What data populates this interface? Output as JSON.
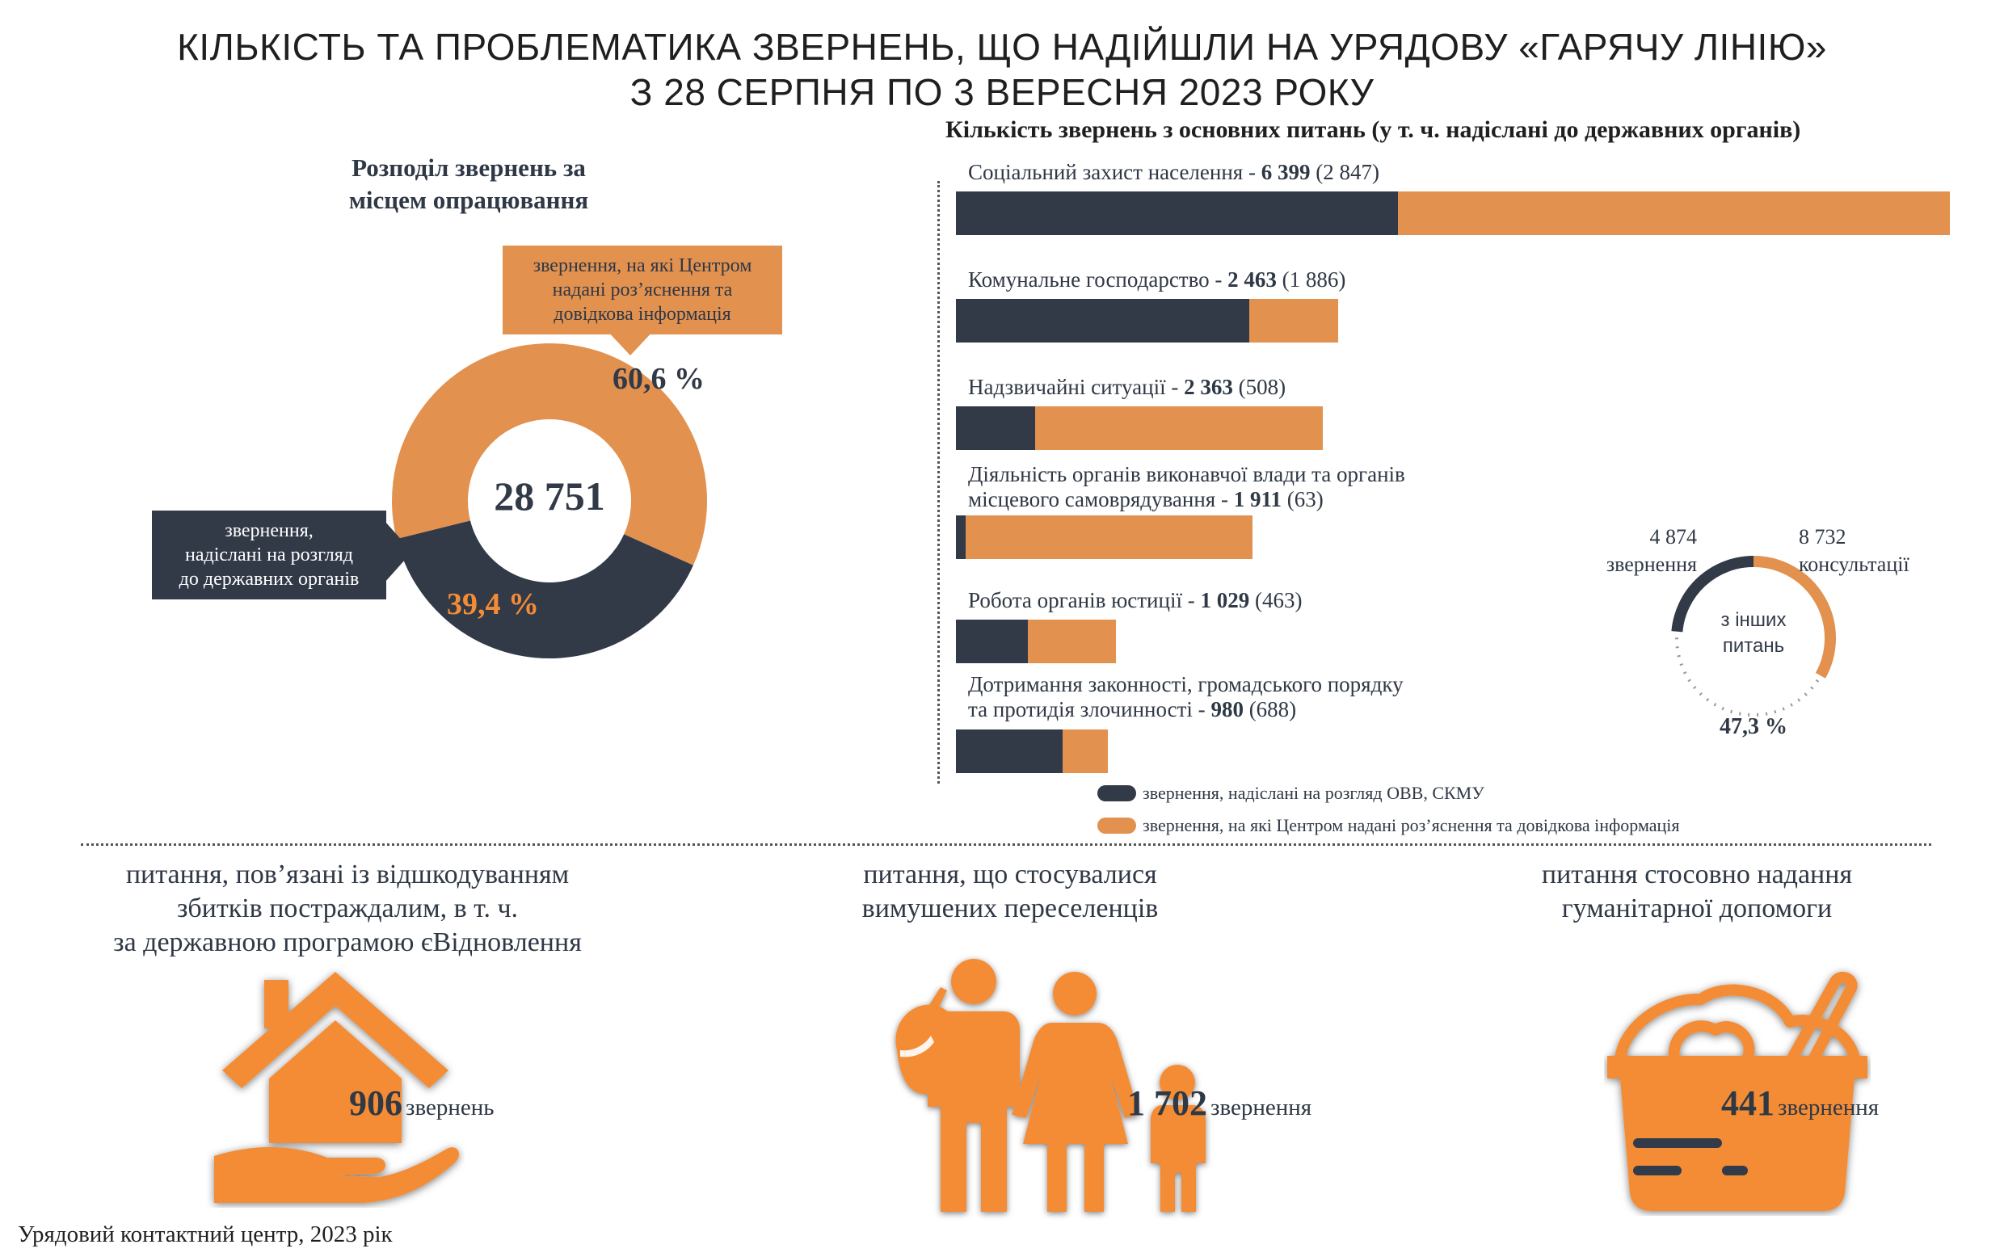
{
  "title": {
    "line1": "КІЛЬКІСТЬ ТА ПРОБЛЕМАТИКА ЗВЕРНЕНЬ, ЩО НАДІЙШЛИ НА УРЯДОВУ «ГАРЯЧУ ЛІНІЮ»",
    "line2": "З 28 СЕРПНЯ ПО 3 ВЕРЕСНЯ 2023 РОКУ"
  },
  "colors": {
    "dark": "#323a48",
    "orange": "#e2914f",
    "orange_bright": "#f48c36"
  },
  "chart_data": [
    {
      "type": "pie",
      "title": "Розподіл звернень за місцем опрацювання",
      "total_label": "28 751",
      "slices": [
        {
          "label": "звернення, на які Центром надані роз’яснення та довідкова інформація",
          "value": 60.6,
          "display": "60,6 %"
        },
        {
          "label": "звернення, надіслані на розгляд до державних органів",
          "value": 39.4,
          "display": "39,4 %"
        }
      ]
    },
    {
      "type": "bar",
      "title": "Кількість звернень з основних питань (у т. ч. надіслані до державних органів)",
      "categories": [
        {
          "line1": "Соціальний захист населення - ",
          "line2": "",
          "total": 6399,
          "total_text": "6 399",
          "sent": 2847,
          "sent_text": "(2 847)"
        },
        {
          "line1": "Комунальне господарство - ",
          "line2": "",
          "total": 2463,
          "total_text": "2 463",
          "sent": 1886,
          "sent_text": "(1 886)"
        },
        {
          "line1": "Надзвичайні ситуації - ",
          "line2": "",
          "total": 2363,
          "total_text": "2 363",
          "sent": 508,
          "sent_text": "(508)"
        },
        {
          "line1": "Діяльність органів виконавчої влади та органів",
          "line2": "місцевого самоврядування - ",
          "total": 1911,
          "total_text": "1 911",
          "sent": 63,
          "sent_text": "(63)"
        },
        {
          "line1": "Робота органів юстиції - ",
          "line2": "",
          "total": 1029,
          "total_text": "1 029",
          "sent": 463,
          "sent_text": "(463)"
        },
        {
          "line1": "Дотримання законності, громадського порядку",
          "line2": "та протидія злочинності - ",
          "total": 980,
          "total_text": "980",
          "sent": 688,
          "sent_text": "(688)"
        }
      ],
      "legend": [
        "звернення, надіслані на розгляд ОВВ, СКМУ",
        "звернення, на які Центром надані роз’яснення та довідкова інформація"
      ]
    },
    {
      "type": "pie",
      "center_label": [
        "з інших",
        "питань"
      ],
      "left_value": "4 874",
      "left_label": "звернення",
      "right_value": "8 732",
      "right_label": "консультації",
      "percent_label": "47,3 %",
      "percent": 47.3
    }
  ],
  "donut": {
    "title_line1": "Розподіл звернень за",
    "title_line2": "місцем опрацювання",
    "callout_orange": [
      "звернення, на які Центром",
      "надані роз’яснення та",
      "довідкова інформація"
    ],
    "callout_dark": [
      "звернення,",
      "надіслані на розгляд",
      "до державних органів"
    ]
  },
  "bars_title": "Кількість звернень з основних питань (у т. ч. надіслані до державних органів)",
  "topics": [
    {
      "title": [
        "питання, пов’язані із відшкодуванням",
        "збитків постраждалим, в т. ч.",
        "за державною програмою єВідновлення"
      ],
      "count": "906",
      "unit": "звернень",
      "icon": "house-hand-icon"
    },
    {
      "title": [
        "питання, що стосувалися",
        "вимушених переселенців"
      ],
      "count": "1 702",
      "unit": "звернення",
      "icon": "family-icon"
    },
    {
      "title": [
        "питання стосовно надання",
        "гуманітарної допомоги"
      ],
      "count": "441",
      "unit": "звернення",
      "icon": "food-basket-icon"
    }
  ],
  "footer": "Урядовий контактний центр, 2023 рік"
}
